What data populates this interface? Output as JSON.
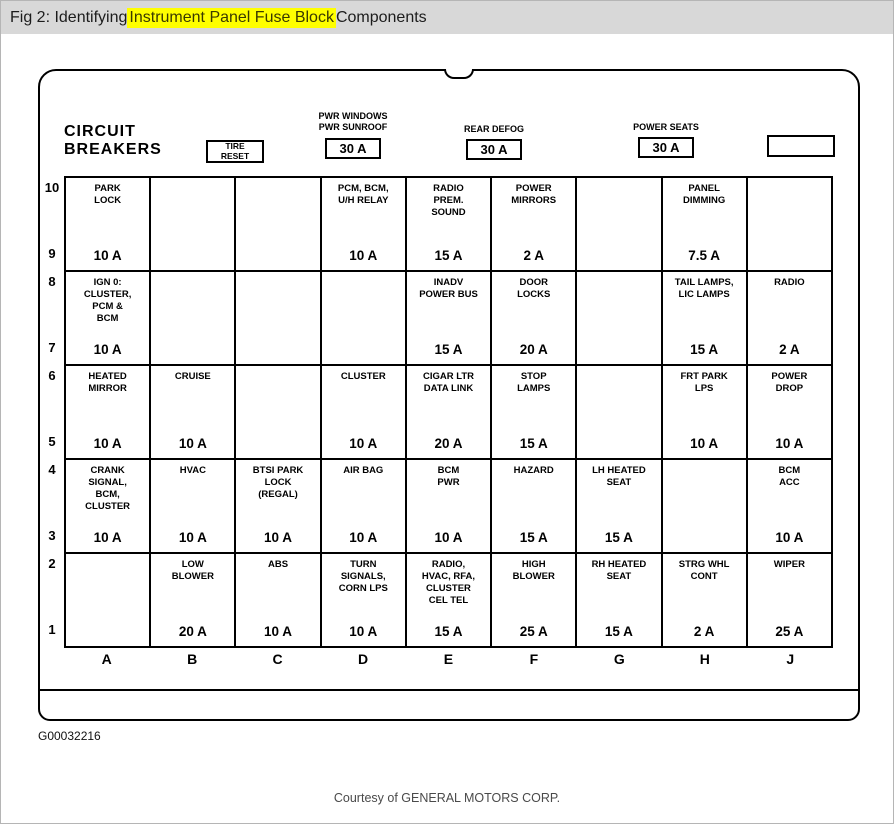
{
  "title": {
    "prefix": "Fig 2: Identifying ",
    "highlight": "Instrument Panel Fuse Block",
    "suffix": " Components"
  },
  "colors": {
    "highlight": "#ffff00",
    "titlebar_bg": "#d8d8d8",
    "line": "#000000"
  },
  "panel": {
    "circuit_breakers_label": "CIRCUIT\nBREAKERS",
    "tire_reset_label": "TIRE\nRESET",
    "breakers": [
      {
        "label": "PWR WINDOWS\nPWR SUNROOF",
        "value": "30 A"
      },
      {
        "label": "REAR DEFOG",
        "value": "30 A"
      },
      {
        "label": "POWER SEATS",
        "value": "30 A"
      }
    ],
    "spare_box_label": ""
  },
  "grid": {
    "row_number_pairs": [
      [
        "10",
        "9"
      ],
      [
        "8",
        "7"
      ],
      [
        "6",
        "5"
      ],
      [
        "4",
        "3"
      ],
      [
        "2",
        "1"
      ]
    ],
    "column_letters": [
      "A",
      "B",
      "C",
      "D",
      "E",
      "F",
      "G",
      "H",
      "J"
    ],
    "rows": [
      [
        {
          "label": "PARK\nLOCK",
          "amp": "10 A"
        },
        {
          "label": "",
          "amp": ""
        },
        {
          "label": "",
          "amp": ""
        },
        {
          "label": "PCM, BCM,\nU/H RELAY",
          "amp": "10 A"
        },
        {
          "label": "RADIO\nPREM.\nSOUND",
          "amp": "15 A"
        },
        {
          "label": "POWER\nMIRRORS",
          "amp": "2 A"
        },
        {
          "label": "",
          "amp": ""
        },
        {
          "label": "PANEL\nDIMMING",
          "amp": "7.5 A"
        },
        {
          "label": "",
          "amp": ""
        }
      ],
      [
        {
          "label": "IGN 0:\nCLUSTER,\nPCM &\nBCM",
          "amp": "10 A"
        },
        {
          "label": "",
          "amp": ""
        },
        {
          "label": "",
          "amp": ""
        },
        {
          "label": "",
          "amp": ""
        },
        {
          "label": "INADV\nPOWER BUS",
          "amp": "15 A"
        },
        {
          "label": "DOOR\nLOCKS",
          "amp": "20 A"
        },
        {
          "label": "",
          "amp": ""
        },
        {
          "label": "TAIL LAMPS,\nLIC LAMPS",
          "amp": "15 A"
        },
        {
          "label": "RADIO",
          "amp": "2 A"
        }
      ],
      [
        {
          "label": "HEATED\nMIRROR",
          "amp": "10 A"
        },
        {
          "label": "CRUISE",
          "amp": "10 A"
        },
        {
          "label": "",
          "amp": ""
        },
        {
          "label": "CLUSTER",
          "amp": "10 A"
        },
        {
          "label": "CIGAR LTR\nDATA LINK",
          "amp": "20 A"
        },
        {
          "label": "STOP\nLAMPS",
          "amp": "15 A"
        },
        {
          "label": "",
          "amp": ""
        },
        {
          "label": "FRT PARK\nLPS",
          "amp": "10 A"
        },
        {
          "label": "POWER\nDROP",
          "amp": "10 A"
        }
      ],
      [
        {
          "label": "CRANK\nSIGNAL,\nBCM,\nCLUSTER",
          "amp": "10 A"
        },
        {
          "label": "HVAC",
          "amp": "10 A"
        },
        {
          "label": "BTSI PARK\nLOCK\n(REGAL)",
          "amp": "10 A"
        },
        {
          "label": "AIR BAG",
          "amp": "10 A"
        },
        {
          "label": "BCM\nPWR",
          "amp": "10 A"
        },
        {
          "label": "HAZARD",
          "amp": "15 A"
        },
        {
          "label": "LH HEATED\nSEAT",
          "amp": "15 A"
        },
        {
          "label": "",
          "amp": ""
        },
        {
          "label": "BCM\nACC",
          "amp": "10 A"
        }
      ],
      [
        {
          "label": "",
          "amp": ""
        },
        {
          "label": "LOW\nBLOWER",
          "amp": "20 A"
        },
        {
          "label": "ABS",
          "amp": "10 A"
        },
        {
          "label": "TURN\nSIGNALS,\nCORN LPS",
          "amp": "10 A"
        },
        {
          "label": "RADIO,\nHVAC, RFA,\nCLUSTER\nCEL TEL",
          "amp": "15 A"
        },
        {
          "label": "HIGH\nBLOWER",
          "amp": "25 A"
        },
        {
          "label": "RH HEATED\nSEAT",
          "amp": "15 A"
        },
        {
          "label": "STRG WHL\nCONT",
          "amp": "2 A"
        },
        {
          "label": "WIPER",
          "amp": "25 A"
        }
      ]
    ]
  },
  "footer": {
    "figure_code": "G00032216",
    "courtesy": "Courtesy of GENERAL MOTORS CORP."
  }
}
